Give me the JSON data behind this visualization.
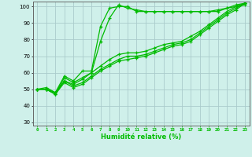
{
  "title": "",
  "xlabel": "Humidité relative (%)",
  "ylabel": "",
  "bg_color": "#cff0ea",
  "grid_color": "#aacccc",
  "line_color": "#00bb00",
  "xlim": [
    -0.5,
    23.5
  ],
  "ylim": [
    28,
    103
  ],
  "yticks": [
    30,
    40,
    50,
    60,
    70,
    80,
    90,
    100
  ],
  "xticks": [
    0,
    1,
    2,
    3,
    4,
    5,
    6,
    7,
    8,
    9,
    10,
    11,
    12,
    13,
    14,
    15,
    16,
    17,
    18,
    19,
    20,
    21,
    22,
    23
  ],
  "lines": [
    {
      "x": [
        0,
        1,
        2,
        3,
        4,
        5,
        6,
        7,
        8,
        9,
        10,
        11,
        12,
        13,
        14,
        15,
        16,
        17,
        18,
        19,
        20,
        21,
        22,
        23
      ],
      "y": [
        50,
        51,
        48,
        58,
        55,
        61,
        61,
        88,
        99,
        100,
        100,
        97,
        97,
        97,
        97,
        97,
        97,
        97,
        97,
        97,
        98,
        99,
        100,
        101
      ]
    },
    {
      "x": [
        0,
        1,
        2,
        3,
        4,
        5,
        6,
        7,
        8,
        9,
        10,
        11,
        12,
        13,
        14,
        15,
        16,
        17,
        18,
        19,
        20,
        21,
        22,
        23
      ],
      "y": [
        50,
        50,
        47,
        57,
        54,
        57,
        60,
        79,
        93,
        101,
        99,
        98,
        97,
        97,
        97,
        97,
        97,
        97,
        97,
        97,
        97,
        99,
        101,
        102
      ]
    },
    {
      "x": [
        0,
        1,
        2,
        3,
        4,
        5,
        6,
        7,
        8,
        9,
        10,
        11,
        12,
        13,
        14,
        15,
        16,
        17,
        18,
        19,
        20,
        21,
        22,
        23
      ],
      "y": [
        50,
        50,
        48,
        55,
        53,
        56,
        60,
        64,
        68,
        71,
        72,
        72,
        73,
        75,
        77,
        78,
        79,
        82,
        85,
        89,
        93,
        97,
        100,
        102
      ]
    },
    {
      "x": [
        0,
        1,
        2,
        3,
        4,
        5,
        6,
        7,
        8,
        9,
        10,
        11,
        12,
        13,
        14,
        15,
        16,
        17,
        18,
        19,
        20,
        21,
        22,
        23
      ],
      "y": [
        50,
        50,
        47,
        55,
        52,
        54,
        58,
        62,
        65,
        68,
        70,
        70,
        71,
        73,
        75,
        77,
        78,
        80,
        84,
        88,
        92,
        96,
        99,
        102
      ]
    },
    {
      "x": [
        0,
        1,
        2,
        3,
        4,
        5,
        6,
        7,
        8,
        9,
        10,
        11,
        12,
        13,
        14,
        15,
        16,
        17,
        18,
        19,
        20,
        21,
        22,
        23
      ],
      "y": [
        50,
        50,
        47,
        54,
        51,
        53,
        57,
        61,
        64,
        67,
        68,
        69,
        70,
        72,
        74,
        76,
        77,
        79,
        83,
        87,
        91,
        95,
        98,
        102
      ]
    }
  ]
}
